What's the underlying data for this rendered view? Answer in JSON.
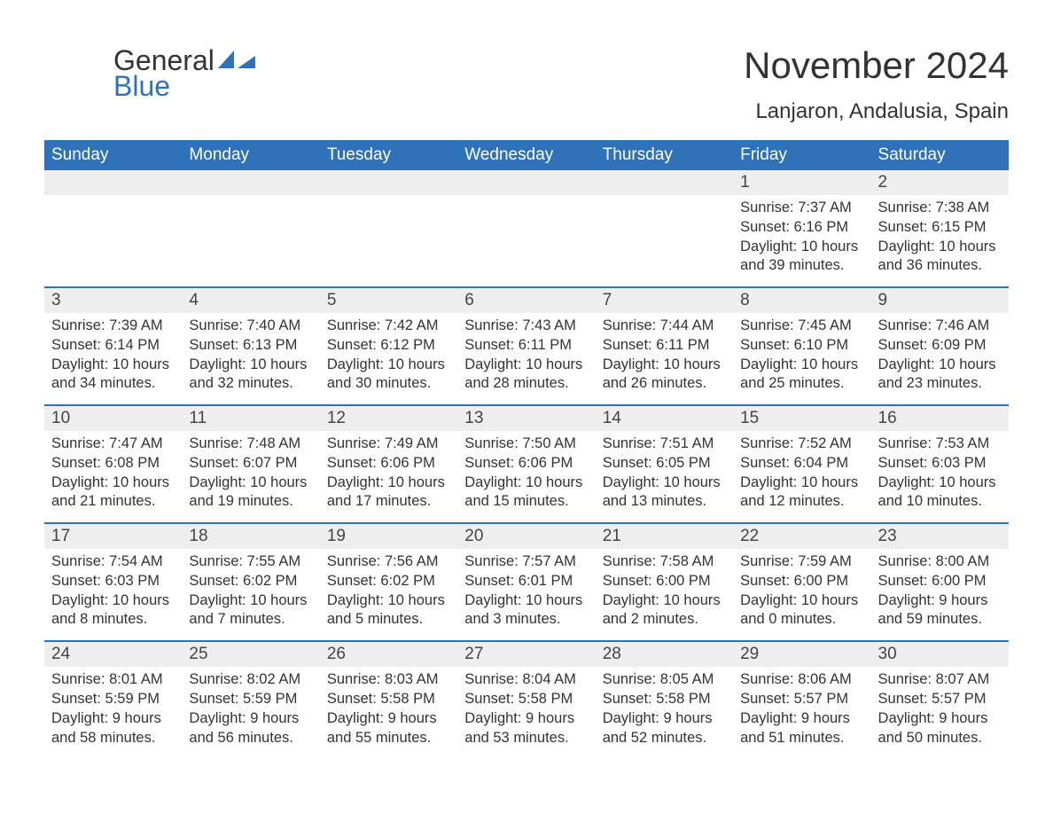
{
  "brand": {
    "part1": "General",
    "part2": "Blue",
    "color1": "#333333",
    "color2": "#2f72b9"
  },
  "title": "November 2024",
  "location": "Lanjaron, Andalusia, Spain",
  "colors": {
    "header_bg": "#2f72b9",
    "header_text": "#ffffff",
    "daynum_bg": "#eeeeee",
    "week_border": "#2f72b9",
    "body_text": "#333333",
    "page_bg": "#ffffff"
  },
  "font": {
    "family": "Arial",
    "title_size_pt": 32,
    "location_size_pt": 18,
    "header_size_pt": 14,
    "body_size_pt": 12
  },
  "day_names": [
    "Sunday",
    "Monday",
    "Tuesday",
    "Wednesday",
    "Thursday",
    "Friday",
    "Saturday"
  ],
  "labels": {
    "sunrise": "Sunrise",
    "sunset": "Sunset",
    "daylight": "Daylight"
  },
  "weeks": [
    [
      null,
      null,
      null,
      null,
      null,
      {
        "n": "1",
        "sr": "7:37 AM",
        "ss": "6:16 PM",
        "dl": "10 hours and 39 minutes."
      },
      {
        "n": "2",
        "sr": "7:38 AM",
        "ss": "6:15 PM",
        "dl": "10 hours and 36 minutes."
      }
    ],
    [
      {
        "n": "3",
        "sr": "7:39 AM",
        "ss": "6:14 PM",
        "dl": "10 hours and 34 minutes."
      },
      {
        "n": "4",
        "sr": "7:40 AM",
        "ss": "6:13 PM",
        "dl": "10 hours and 32 minutes."
      },
      {
        "n": "5",
        "sr": "7:42 AM",
        "ss": "6:12 PM",
        "dl": "10 hours and 30 minutes."
      },
      {
        "n": "6",
        "sr": "7:43 AM",
        "ss": "6:11 PM",
        "dl": "10 hours and 28 minutes."
      },
      {
        "n": "7",
        "sr": "7:44 AM",
        "ss": "6:11 PM",
        "dl": "10 hours and 26 minutes."
      },
      {
        "n": "8",
        "sr": "7:45 AM",
        "ss": "6:10 PM",
        "dl": "10 hours and 25 minutes."
      },
      {
        "n": "9",
        "sr": "7:46 AM",
        "ss": "6:09 PM",
        "dl": "10 hours and 23 minutes."
      }
    ],
    [
      {
        "n": "10",
        "sr": "7:47 AM",
        "ss": "6:08 PM",
        "dl": "10 hours and 21 minutes."
      },
      {
        "n": "11",
        "sr": "7:48 AM",
        "ss": "6:07 PM",
        "dl": "10 hours and 19 minutes."
      },
      {
        "n": "12",
        "sr": "7:49 AM",
        "ss": "6:06 PM",
        "dl": "10 hours and 17 minutes."
      },
      {
        "n": "13",
        "sr": "7:50 AM",
        "ss": "6:06 PM",
        "dl": "10 hours and 15 minutes."
      },
      {
        "n": "14",
        "sr": "7:51 AM",
        "ss": "6:05 PM",
        "dl": "10 hours and 13 minutes."
      },
      {
        "n": "15",
        "sr": "7:52 AM",
        "ss": "6:04 PM",
        "dl": "10 hours and 12 minutes."
      },
      {
        "n": "16",
        "sr": "7:53 AM",
        "ss": "6:03 PM",
        "dl": "10 hours and 10 minutes."
      }
    ],
    [
      {
        "n": "17",
        "sr": "7:54 AM",
        "ss": "6:03 PM",
        "dl": "10 hours and 8 minutes."
      },
      {
        "n": "18",
        "sr": "7:55 AM",
        "ss": "6:02 PM",
        "dl": "10 hours and 7 minutes."
      },
      {
        "n": "19",
        "sr": "7:56 AM",
        "ss": "6:02 PM",
        "dl": "10 hours and 5 minutes."
      },
      {
        "n": "20",
        "sr": "7:57 AM",
        "ss": "6:01 PM",
        "dl": "10 hours and 3 minutes."
      },
      {
        "n": "21",
        "sr": "7:58 AM",
        "ss": "6:00 PM",
        "dl": "10 hours and 2 minutes."
      },
      {
        "n": "22",
        "sr": "7:59 AM",
        "ss": "6:00 PM",
        "dl": "10 hours and 0 minutes."
      },
      {
        "n": "23",
        "sr": "8:00 AM",
        "ss": "6:00 PM",
        "dl": "9 hours and 59 minutes."
      }
    ],
    [
      {
        "n": "24",
        "sr": "8:01 AM",
        "ss": "5:59 PM",
        "dl": "9 hours and 58 minutes."
      },
      {
        "n": "25",
        "sr": "8:02 AM",
        "ss": "5:59 PM",
        "dl": "9 hours and 56 minutes."
      },
      {
        "n": "26",
        "sr": "8:03 AM",
        "ss": "5:58 PM",
        "dl": "9 hours and 55 minutes."
      },
      {
        "n": "27",
        "sr": "8:04 AM",
        "ss": "5:58 PM",
        "dl": "9 hours and 53 minutes."
      },
      {
        "n": "28",
        "sr": "8:05 AM",
        "ss": "5:58 PM",
        "dl": "9 hours and 52 minutes."
      },
      {
        "n": "29",
        "sr": "8:06 AM",
        "ss": "5:57 PM",
        "dl": "9 hours and 51 minutes."
      },
      {
        "n": "30",
        "sr": "8:07 AM",
        "ss": "5:57 PM",
        "dl": "9 hours and 50 minutes."
      }
    ]
  ]
}
